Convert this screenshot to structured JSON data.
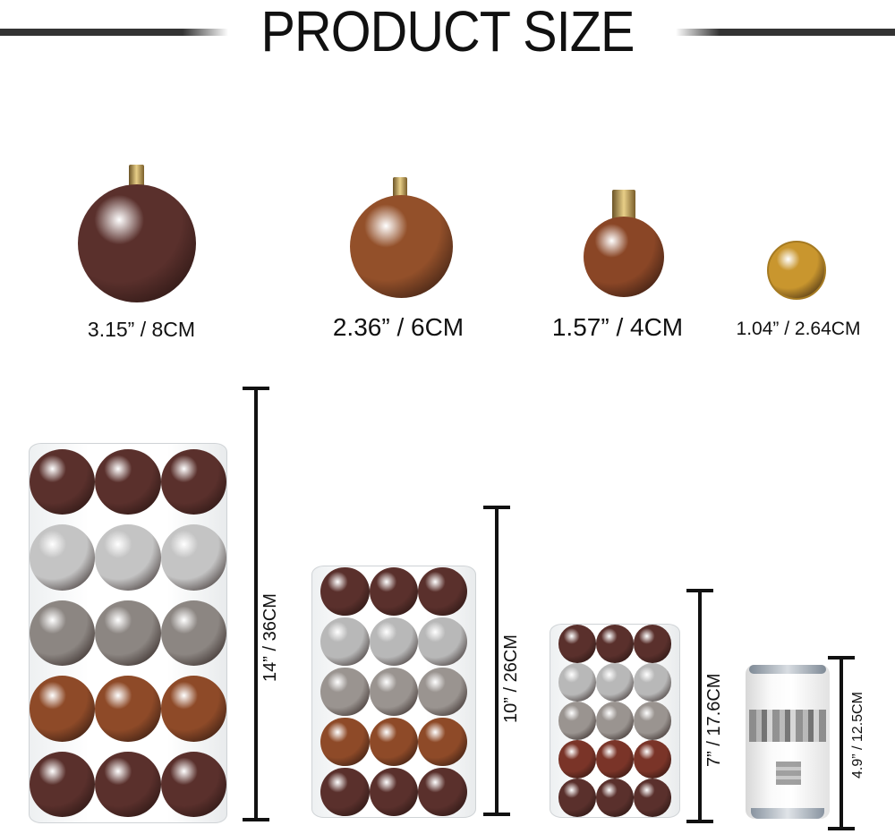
{
  "title": "PRODUCT SIZE",
  "ornaments": [
    {
      "label": "3.15” / 8CM",
      "color": "#5a302c"
    },
    {
      "label": "2.36” / 6CM",
      "color": "#93502a"
    },
    {
      "label": "1.57” / 4CM",
      "color": "#8a4626"
    },
    {
      "label": "1.04” / 2.64CM",
      "color": "#c9962e"
    }
  ],
  "tubes": [
    {
      "height_label": "14” / 36CM",
      "rows": [
        "#5a302c",
        "#c4c4c4",
        "#8c8682",
        "#8e4a28",
        "#5a302c"
      ]
    },
    {
      "height_label": "10” / 26CM",
      "rows": [
        "#5a302c",
        "#b8b8b8",
        "#9a9490",
        "#8e4a28",
        "#5a302c"
      ]
    },
    {
      "height_label": "7” / 17.6CM",
      "rows": [
        "#5a302c",
        "#b8b8b8",
        "#9a9490",
        "#7a3428",
        "#5a302c"
      ]
    }
  ],
  "can": {
    "height_label": "4.9” / 12.5CM"
  }
}
